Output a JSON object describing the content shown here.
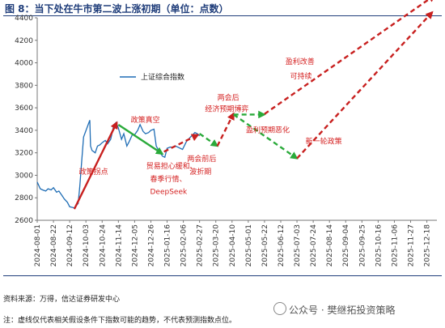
{
  "header": {
    "title": "图 8：当下处在牛市第二波上涨初期（单位：点数）"
  },
  "footer": {
    "source": "资料来源：万得，信达证券研发中心",
    "note": "注：虚线仅代表相关假设条件下指数可能的趋势，不代表预测指数点位。",
    "watermark": "公众号 · 樊继拓投资策略"
  },
  "chart_data": {
    "type": "line",
    "title": "图 8：当下处在牛市第二波上涨初期（单位：点数）",
    "xlabel": "",
    "ylabel": "",
    "ylim": [
      2600,
      4400
    ],
    "yticks": [
      2600,
      2800,
      3000,
      3200,
      3400,
      3600,
      3800,
      4000,
      4200,
      4400
    ],
    "xlim": [
      "2024-08-01",
      "2025-12-31"
    ],
    "x_ticks": [
      "2024-08-01",
      "2024-08-22",
      "2024-09-12",
      "2024-10-03",
      "2024-10-24",
      "2024-11-14",
      "2024-12-05",
      "2024-12-26",
      "2025-01-16",
      "2025-02-06",
      "2025-02-27",
      "2025-03-20",
      "2025-04-10",
      "2025-05-01",
      "2025-05-22",
      "2025-06-12",
      "2025-07-03",
      "2025-07-24",
      "2025-08-14",
      "2025-09-04",
      "2025-09-25",
      "2025-10-16",
      "2025-11-06",
      "2025-11-27",
      "2025-12-18"
    ],
    "grid": false,
    "legend": {
      "position": "top-left",
      "entries": [
        "上证综合指数"
      ]
    },
    "series": [
      {
        "name": "上证综合指数",
        "color": "#1f6db5",
        "x": [
          "2024-08-01",
          "2024-08-05",
          "2024-08-08",
          "2024-08-12",
          "2024-08-15",
          "2024-08-19",
          "2024-08-22",
          "2024-08-26",
          "2024-08-29",
          "2024-09-02",
          "2024-09-05",
          "2024-09-09",
          "2024-09-12",
          "2024-09-18",
          "2024-09-23",
          "2024-09-25",
          "2024-09-27",
          "2024-09-30",
          "2024-10-08",
          "2024-10-09",
          "2024-10-11",
          "2024-10-15",
          "2024-10-18",
          "2024-10-21",
          "2024-10-24",
          "2024-10-28",
          "2024-10-31",
          "2024-11-04",
          "2024-11-06",
          "2024-11-08",
          "2024-11-11",
          "2024-11-14",
          "2024-11-18",
          "2024-11-21",
          "2024-11-25",
          "2024-11-28",
          "2024-12-02",
          "2024-12-05",
          "2024-12-09",
          "2024-12-12",
          "2024-12-16",
          "2024-12-19",
          "2024-12-23",
          "2024-12-26",
          "2024-12-30",
          "2025-01-02",
          "2025-01-06",
          "2025-01-10",
          "2025-01-13",
          "2025-01-16",
          "2025-01-20",
          "2025-01-23",
          "2025-01-27",
          "2025-02-05",
          "2025-02-10",
          "2025-02-14",
          "2025-02-18",
          "2025-02-21",
          "2025-02-24",
          "2025-02-27"
        ],
        "values": [
          2940,
          2880,
          2870,
          2860,
          2880,
          2870,
          2890,
          2850,
          2860,
          2820,
          2790,
          2760,
          2720,
          2710,
          2750,
          2900,
          3080,
          3340,
          3490,
          3260,
          3220,
          3200,
          3260,
          3270,
          3290,
          3310,
          3280,
          3320,
          3380,
          3450,
          3470,
          3420,
          3320,
          3370,
          3260,
          3300,
          3360,
          3360,
          3400,
          3450,
          3390,
          3370,
          3380,
          3400,
          3410,
          3260,
          3210,
          3170,
          3160,
          3240,
          3250,
          3250,
          3260,
          3230,
          3300,
          3330,
          3360,
          3380,
          3370,
          3350
        ]
      }
    ],
    "trend_arrows": [
      {
        "from": [
          "2024-09-18",
          2700
        ],
        "to": [
          "2024-11-12",
          3470
        ],
        "color": "#c8201f",
        "style": "solid"
      },
      {
        "from": [
          "2024-11-14",
          3450
        ],
        "to": [
          "2025-01-10",
          3190
        ],
        "color": "#2aaa3a",
        "style": "solid"
      },
      {
        "from": [
          "2025-01-12",
          3210
        ],
        "to": [
          "2025-02-25",
          3360
        ],
        "color": "#c8201f",
        "style": "dashed"
      },
      {
        "from": [
          "2025-02-27",
          3370
        ],
        "to": [
          "2025-03-22",
          3260
        ],
        "color": "#2aaa3a",
        "style": "dashed"
      },
      {
        "from": [
          "2025-03-22",
          3260
        ],
        "to": [
          "2025-04-12",
          3550
        ],
        "color": "#c8201f",
        "style": "dashed"
      },
      {
        "from": [
          "2025-04-12",
          3540
        ],
        "to": [
          "2025-05-22",
          3540
        ],
        "color": "#2aaa3a",
        "style": "dashed"
      },
      {
        "from": [
          "2025-05-22",
          3545
        ],
        "to": [
          "2025-12-28",
          4600
        ],
        "color": "#c8201f",
        "style": "dashed"
      },
      {
        "from": [
          "2025-04-12",
          3540
        ],
        "to": [
          "2025-07-03",
          3150
        ],
        "color": "#2aaa3a",
        "style": "dashed"
      },
      {
        "from": [
          "2025-07-03",
          3150
        ],
        "to": [
          "2025-12-25",
          4450
        ],
        "color": "#c8201f",
        "style": "dashed"
      }
    ],
    "annotations": [
      {
        "text": "政策拐点",
        "x": "2024-09-24",
        "y": 3010
      },
      {
        "text": "政策真空",
        "x": "2024-11-30",
        "y": 3470
      },
      {
        "text": "贸易担心缓和、",
        "x": "2024-12-20",
        "y": 3060
      },
      {
        "text": "春季行情、",
        "x": "2024-12-25",
        "y": 2945
      },
      {
        "text": "DeepSeek",
        "x": "2024-12-25",
        "y": 2835
      },
      {
        "text": "两会前后",
        "x": "2025-02-11",
        "y": 3125
      },
      {
        "text": "波折期",
        "x": "2025-02-14",
        "y": 3010
      },
      {
        "text": "两会后",
        "x": "2025-03-22",
        "y": 3670
      },
      {
        "text": "经济预期博弈",
        "x": "2025-03-06",
        "y": 3570
      },
      {
        "text": "盈利预期恶化",
        "x": "2025-04-28",
        "y": 3380
      },
      {
        "text": "新一轮政策",
        "x": "2025-07-14",
        "y": 3280
      },
      {
        "text": "盈利改善",
        "x": "2025-06-18",
        "y": 3990
      },
      {
        "text": "可持续",
        "x": "2025-06-24",
        "y": 3860
      }
    ]
  }
}
